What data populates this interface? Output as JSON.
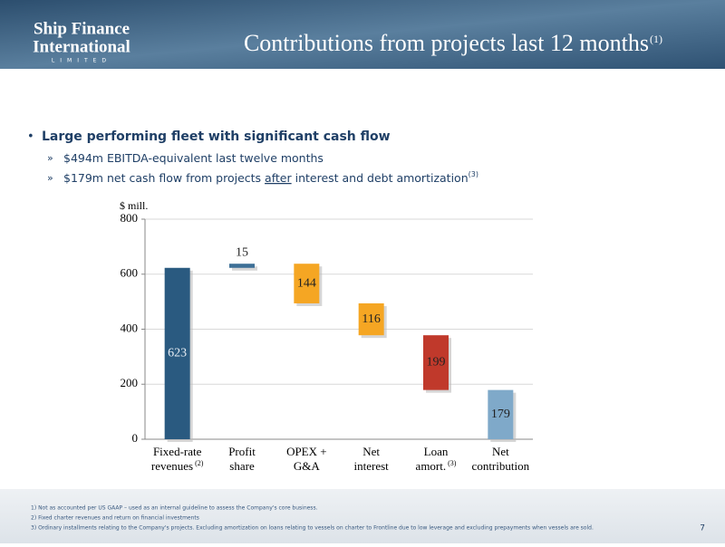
{
  "header": {
    "logo": [
      "Ship Finance",
      "International",
      "LIMITED"
    ],
    "title": "Contributions from projects last 12 months",
    "title_note": "(1)"
  },
  "bullets": {
    "main": "Large performing fleet with significant cash flow",
    "sub": [
      [
        "$494m EBITDA-equivalent last twelve months"
      ],
      [
        "$179m net cash flow from projects ",
        "after",
        " interest and debt amortization",
        "(3)"
      ]
    ]
  },
  "chart_data": {
    "type": "waterfall",
    "y_label": "$ mill.",
    "categories": [
      [
        "Fixed-rate",
        "revenues"
      ],
      [
        "Profit",
        "share"
      ],
      [
        "OPEX +",
        "G&A"
      ],
      [
        "Net",
        "interest"
      ],
      [
        "Loan",
        "amort."
      ],
      [
        "Net",
        "contribution"
      ]
    ],
    "category_notes": [
      "(2)",
      null,
      null,
      null,
      "(3)",
      null
    ],
    "measure": [
      "absolute",
      "relative",
      "relative",
      "relative",
      "relative",
      "total"
    ],
    "values": [
      623,
      15,
      -144,
      -116,
      -199,
      179
    ],
    "value_labels": [
      "623",
      "15",
      "144",
      "116",
      "199",
      "179"
    ],
    "colors": [
      "#2a5a80",
      "#3d6f96",
      "#f5a623",
      "#f5a623",
      "#c0392b",
      "#7fa9c9"
    ],
    "ylim": [
      0,
      800
    ],
    "yticks": [
      0,
      200,
      400,
      600,
      800
    ],
    "grid": true
  },
  "footnotes": [
    "1)  Not as accounted per US GAAP – used as an internal guideline to assess the Company's core business.",
    "2)  Fixed charter revenues and return on financial investments",
    "3)  Ordinary installments relating to the Company's projects. Excluding amortization on loans relating to vessels on charter to Frontline due to low leverage and excluding prepayments when vessels are sold."
  ],
  "page_number": "7"
}
